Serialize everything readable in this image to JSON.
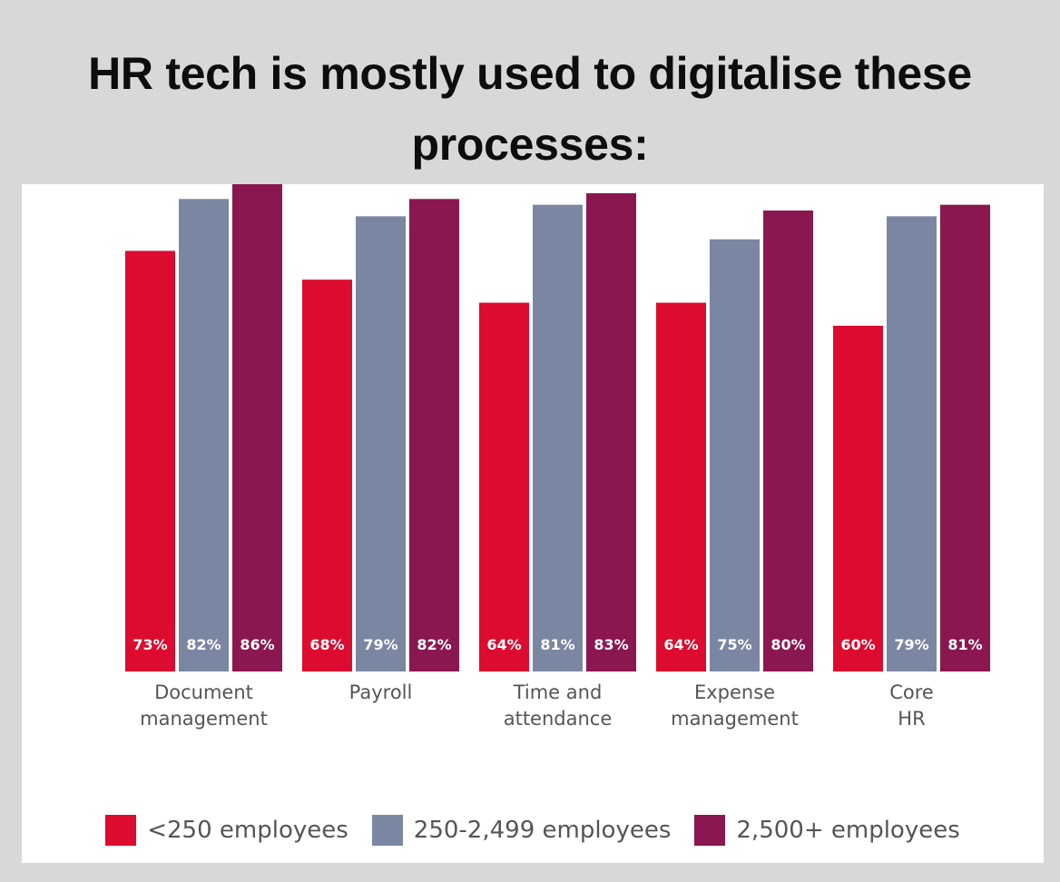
{
  "title_lines": [
    "HR tech is mostly used to digitalise these",
    "processes:"
  ],
  "chart_data": {
    "type": "bar",
    "title": "HR tech is mostly used to digitalise these processes:",
    "categories": [
      [
        "Document",
        "management"
      ],
      [
        "Payroll"
      ],
      [
        "Time and",
        "attendance"
      ],
      [
        "Expense",
        "management"
      ],
      [
        "Core",
        "HR"
      ]
    ],
    "series": [
      {
        "name": "<250 employees",
        "color": "#dc0b2f",
        "values": [
          73,
          68,
          64,
          64,
          60
        ]
      },
      {
        "name": "250-2,499 employees",
        "color": "#7b86a2",
        "values": [
          82,
          79,
          81,
          75,
          79
        ]
      },
      {
        "name": "2,500+ employees",
        "color": "#8a1750",
        "values": [
          86,
          82,
          83,
          80,
          81
        ]
      }
    ],
    "value_suffix": "%",
    "legend_position": "bottom",
    "grid": false,
    "xlabel": "",
    "ylabel": ""
  }
}
